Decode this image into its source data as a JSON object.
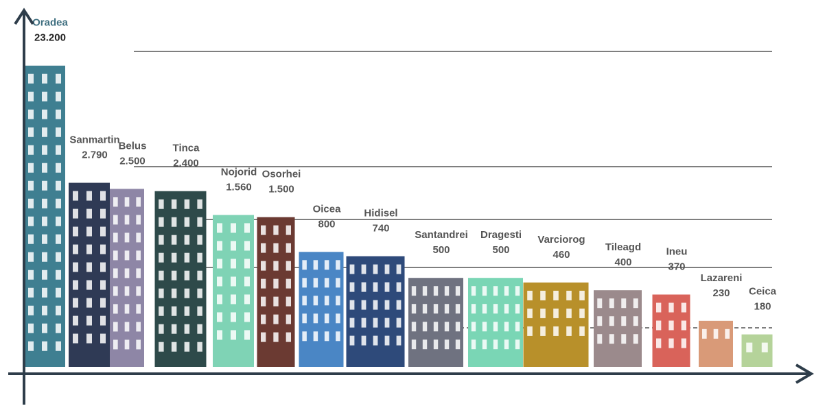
{
  "chart_data": {
    "type": "bar",
    "categories": [
      "Oradea",
      "Sanmartin",
      "Belus",
      "Tinca",
      "Nojorid",
      "Osorhei",
      "Oicea",
      "Hidisel",
      "Santandrei",
      "Dragesti",
      "Varciorog",
      "Tileagd",
      "Ineu",
      "Lazareni",
      "Ceica"
    ],
    "values": [
      23200,
      2790,
      2500,
      2400,
      1560,
      1500,
      800,
      740,
      500,
      500,
      460,
      400,
      370,
      230,
      180
    ],
    "value_labels": [
      "23.200",
      "2.790",
      "2.500",
      "2.400",
      "1.560",
      "1.500",
      "800",
      "740",
      "500",
      "500",
      "460",
      "400",
      "370",
      "230",
      "180"
    ],
    "colors": [
      "#3f7f91",
      "#2f3a55",
      "#8e86a6",
      "#2e4a4a",
      "#7fd3b5",
      "#6b3a32",
      "#4a86c5",
      "#2e4a7a",
      "#6f7280",
      "#7ad6b5",
      "#b8902a",
      "#9b8a8c",
      "#d9635a",
      "#d99a78",
      "#b5d39a"
    ],
    "log_scale": true,
    "ylim": [
      100,
      30000
    ]
  }
}
